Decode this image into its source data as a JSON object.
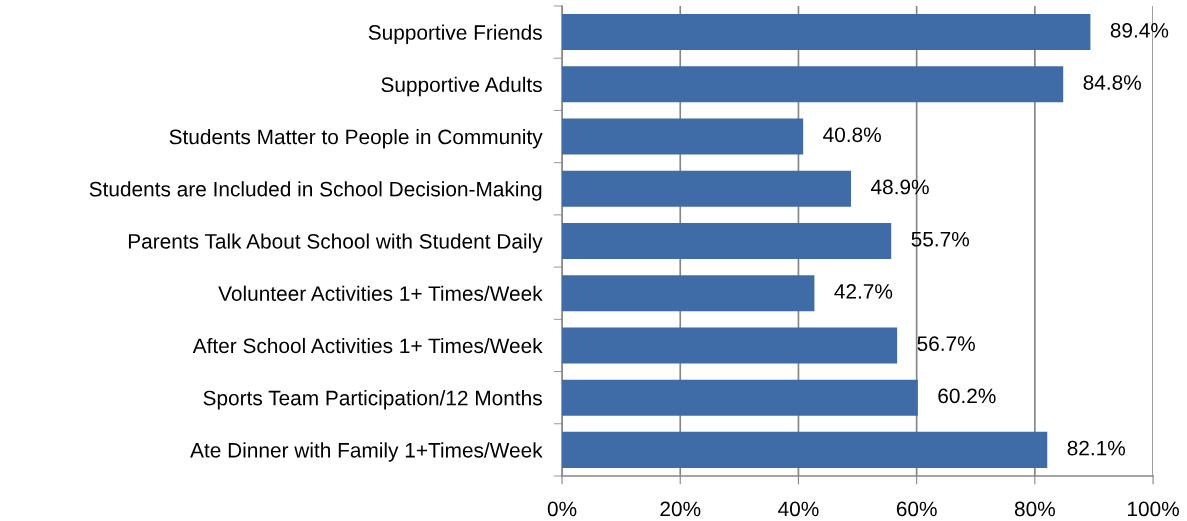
{
  "chart_data": {
    "type": "bar",
    "orientation": "horizontal",
    "categories": [
      "Supportive Friends",
      "Supportive Adults",
      "Students Matter to People in Community",
      "Students are Included in School Decision-Making",
      "Parents Talk About School with Student Daily",
      "Volunteer Activities 1+ Times/Week",
      "After School Activities 1+ Times/Week",
      "Sports Team Participation/12 Months",
      "Ate Dinner with Family 1+Times/Week"
    ],
    "values": [
      89.4,
      84.8,
      40.8,
      48.9,
      55.7,
      42.7,
      56.7,
      60.2,
      82.1
    ],
    "value_labels": [
      "89.4%",
      "84.8%",
      "40.8%",
      "48.9%",
      "55.7%",
      "42.7%",
      "56.7%",
      "60.2%",
      "82.1%"
    ],
    "color": "#3f6ca6",
    "xlim": [
      0,
      100
    ],
    "xticks": [
      {
        "value": 0,
        "label": "0%"
      },
      {
        "value": 20,
        "label": "20%"
      },
      {
        "value": 40,
        "label": "40%"
      },
      {
        "value": 60,
        "label": "60%"
      },
      {
        "value": 80,
        "label": "80%"
      },
      {
        "value": 100,
        "label": "100%"
      }
    ],
    "grid": "x"
  }
}
